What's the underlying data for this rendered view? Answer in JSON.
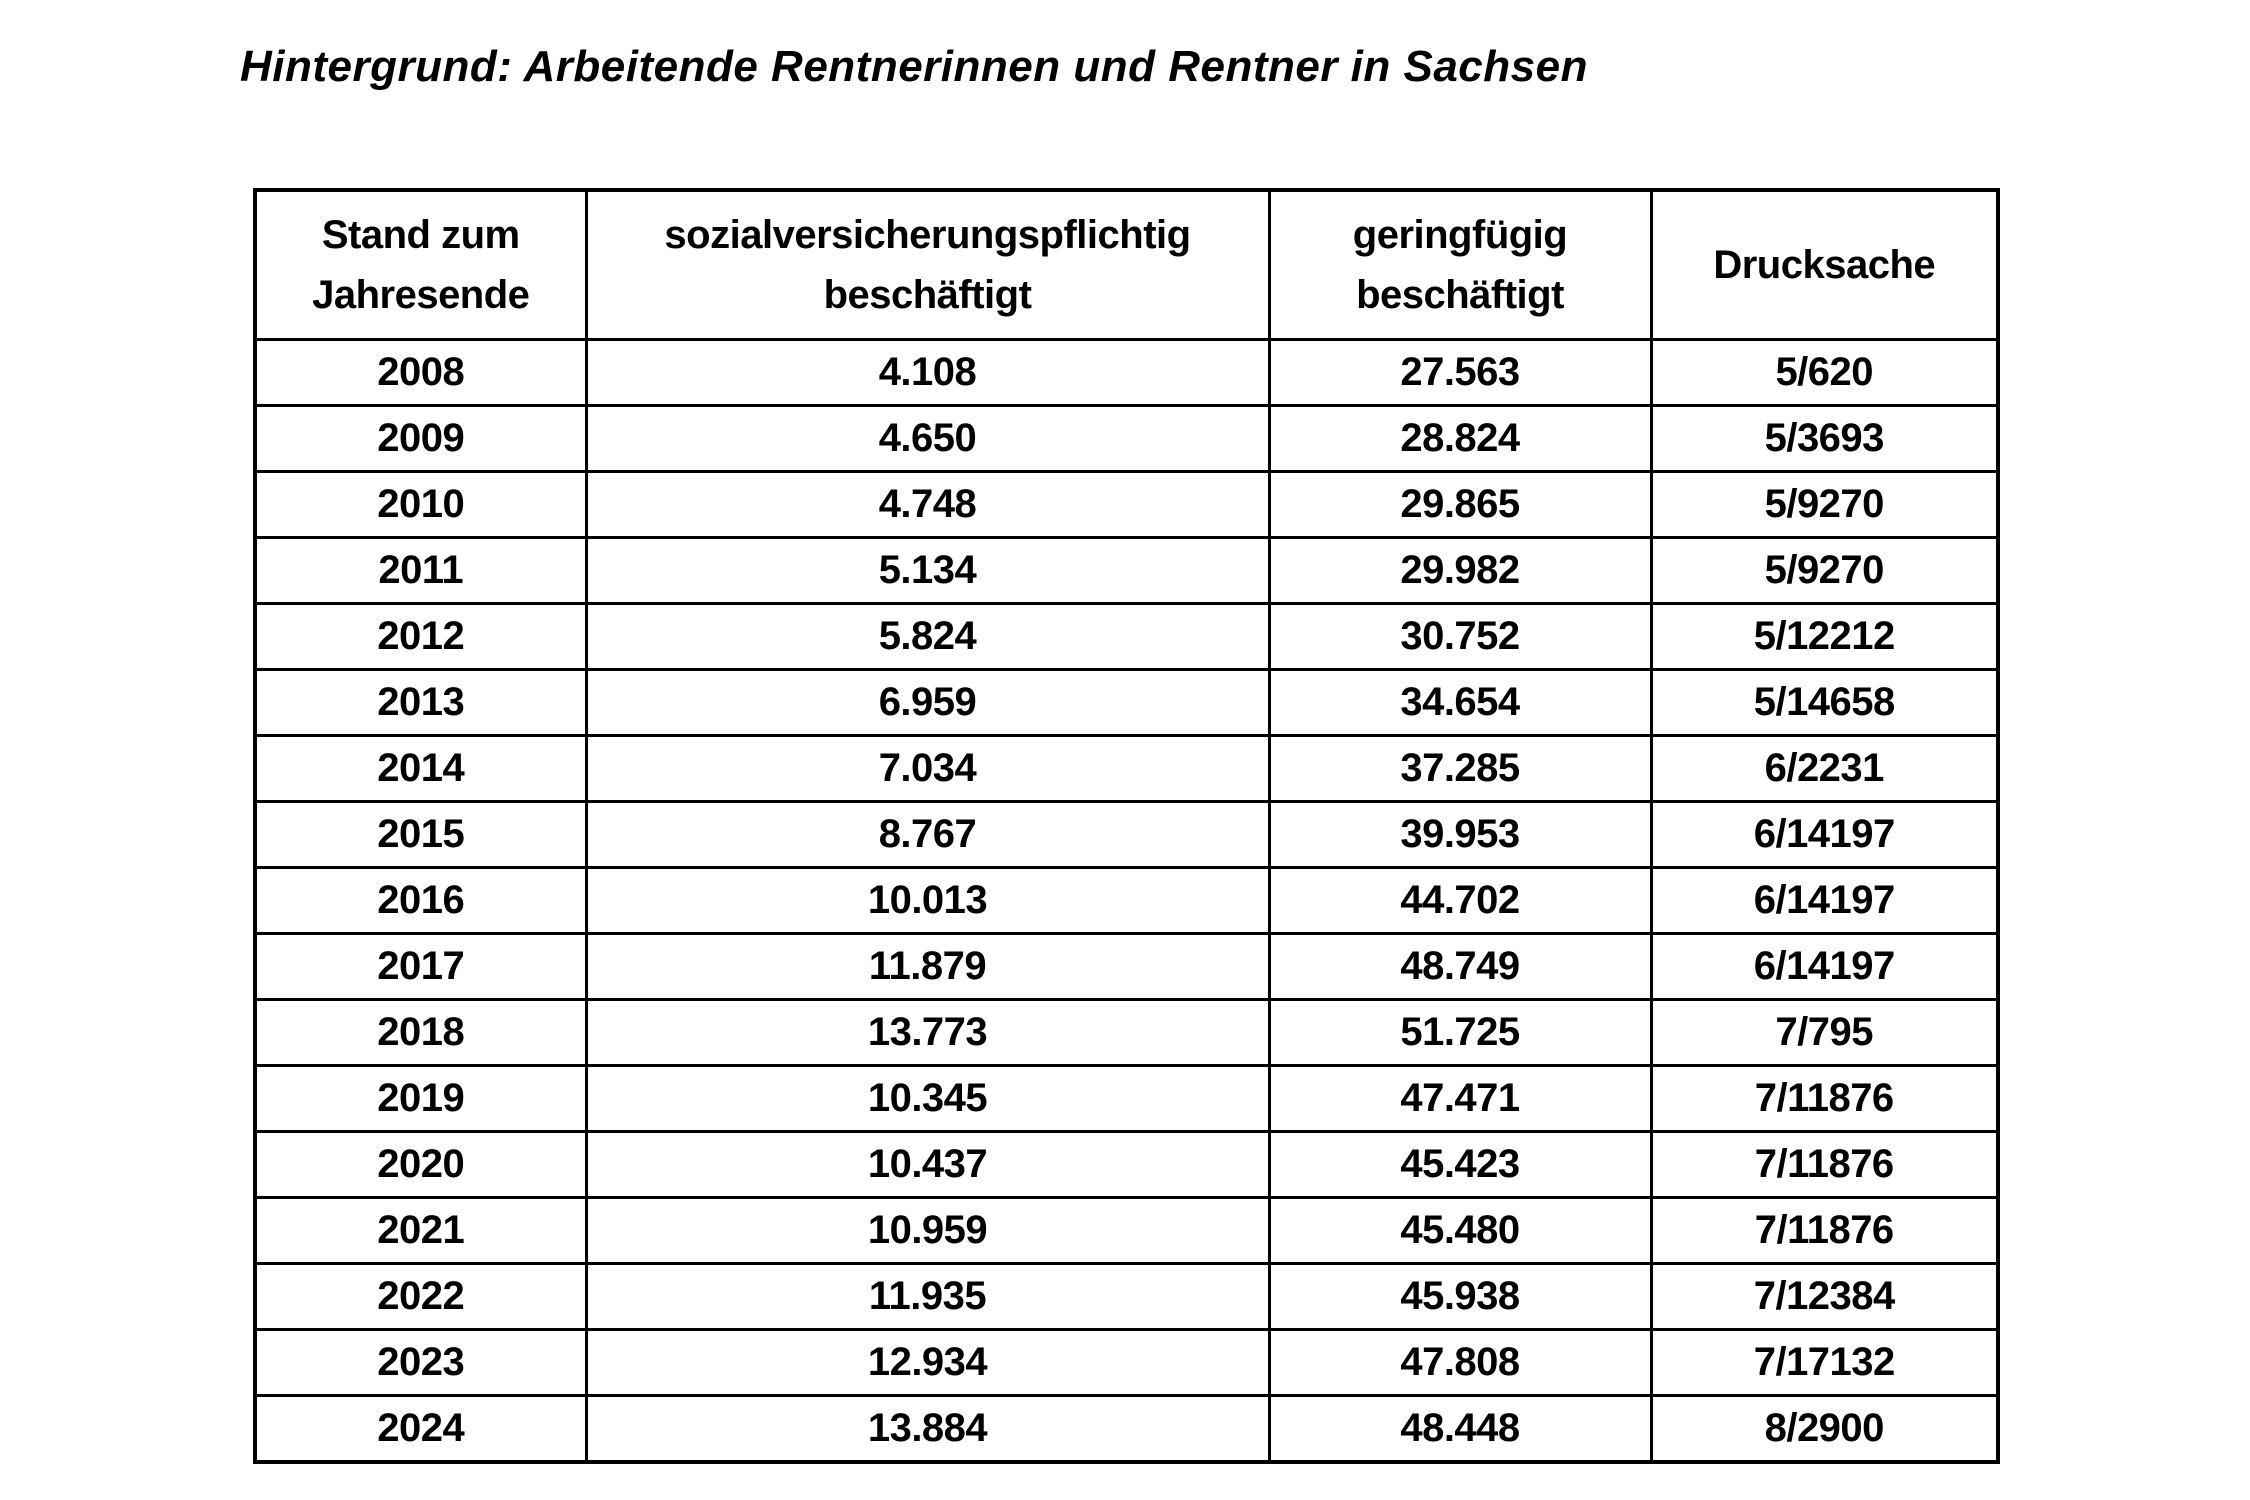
{
  "document": {
    "heading": "Hintergrund: Arbeitende Rentnerinnen und Rentner in Sachsen"
  },
  "table": {
    "headers": {
      "col1": "Stand zum\nJahresende",
      "col2": "sozialversicherungspflichtig\nbeschäftigt",
      "col3": "geringfügig\nbeschäftigt",
      "col4": "Drucksache"
    },
    "rows": [
      {
        "year": "2008",
        "svp": "4.108",
        "gfb": "27.563",
        "drucksache": "5/620"
      },
      {
        "year": "2009",
        "svp": "4.650",
        "gfb": "28.824",
        "drucksache": "5/3693"
      },
      {
        "year": "2010",
        "svp": "4.748",
        "gfb": "29.865",
        "drucksache": "5/9270"
      },
      {
        "year": "2011",
        "svp": "5.134",
        "gfb": "29.982",
        "drucksache": "5/9270"
      },
      {
        "year": "2012",
        "svp": "5.824",
        "gfb": "30.752",
        "drucksache": "5/12212"
      },
      {
        "year": "2013",
        "svp": "6.959",
        "gfb": "34.654",
        "drucksache": "5/14658"
      },
      {
        "year": "2014",
        "svp": "7.034",
        "gfb": "37.285",
        "drucksache": "6/2231"
      },
      {
        "year": "2015",
        "svp": "8.767",
        "gfb": "39.953",
        "drucksache": "6/14197"
      },
      {
        "year": "2016",
        "svp": "10.013",
        "gfb": "44.702",
        "drucksache": "6/14197"
      },
      {
        "year": "2017",
        "svp": "11.879",
        "gfb": "48.749",
        "drucksache": "6/14197"
      },
      {
        "year": "2018",
        "svp": "13.773",
        "gfb": "51.725",
        "drucksache": "7/795"
      },
      {
        "year": "2019",
        "svp": "10.345",
        "gfb": "47.471",
        "drucksache": "7/11876"
      },
      {
        "year": "2020",
        "svp": "10.437",
        "gfb": "45.423",
        "drucksache": "7/11876"
      },
      {
        "year": "2021",
        "svp": "10.959",
        "gfb": "45.480",
        "drucksache": "7/11876"
      },
      {
        "year": "2022",
        "svp": "11.935",
        "gfb": "45.938",
        "drucksache": "7/12384"
      },
      {
        "year": "2023",
        "svp": "12.934",
        "gfb": "47.808",
        "drucksache": "7/17132"
      },
      {
        "year": "2024",
        "svp": "13.884",
        "gfb": "48.448",
        "drucksache": "8/2900"
      }
    ]
  },
  "chart_data": {
    "type": "table",
    "title": "Hintergrund: Arbeitende Rentnerinnen und Rentner in Sachsen",
    "categories": [
      "2008",
      "2009",
      "2010",
      "2011",
      "2012",
      "2013",
      "2014",
      "2015",
      "2016",
      "2017",
      "2018",
      "2019",
      "2020",
      "2021",
      "2022",
      "2023",
      "2024"
    ],
    "series": [
      {
        "name": "sozialversicherungspflichtig beschäftigt",
        "values": [
          4108,
          4650,
          4748,
          5134,
          5824,
          6959,
          7034,
          8767,
          10013,
          11879,
          13773,
          10345,
          10437,
          10959,
          11935,
          12934,
          13884
        ]
      },
      {
        "name": "geringfügig beschäftigt",
        "values": [
          27563,
          28824,
          29865,
          29982,
          30752,
          34654,
          37285,
          39953,
          44702,
          48749,
          51725,
          47471,
          45423,
          45480,
          45938,
          47808,
          48448
        ]
      }
    ],
    "drucksache_refs": [
      "5/620",
      "5/3693",
      "5/9270",
      "5/9270",
      "5/12212",
      "5/14658",
      "6/2231",
      "6/14197",
      "6/14197",
      "6/14197",
      "7/795",
      "7/11876",
      "7/11876",
      "7/11876",
      "7/12384",
      "7/17132",
      "8/2900"
    ]
  }
}
